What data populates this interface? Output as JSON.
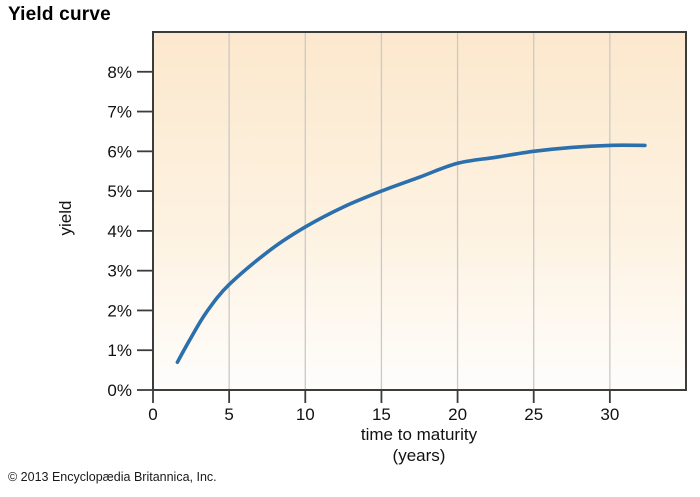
{
  "title": "Yield curve",
  "copyright": "© 2013 Encyclopædia Britannica, Inc.",
  "chart_data": {
    "type": "line",
    "title": "Yield curve",
    "xlabel": "time to maturity (years)",
    "xlabel_lines": [
      "time to maturity",
      "(years)"
    ],
    "ylabel": "yield",
    "xlim": [
      0,
      35
    ],
    "ylim": [
      0,
      9
    ],
    "x_ticks": [
      0,
      5,
      10,
      15,
      20,
      25,
      30
    ],
    "y_ticks": [
      0,
      1,
      2,
      3,
      4,
      5,
      6,
      7,
      8
    ],
    "y_tick_suffix": "%",
    "grid": "vertical-only",
    "legend": "none",
    "series": [
      {
        "name": "yield",
        "color": "#2c6fad",
        "points": [
          [
            1.6,
            0.7
          ],
          [
            2.4,
            1.25
          ],
          [
            3.5,
            1.95
          ],
          [
            5,
            2.65
          ],
          [
            7.8,
            3.55
          ],
          [
            10,
            4.1
          ],
          [
            12.5,
            4.6
          ],
          [
            15,
            5.0
          ],
          [
            17.5,
            5.35
          ],
          [
            20,
            5.7
          ],
          [
            22.5,
            5.85
          ],
          [
            25,
            6.0
          ],
          [
            27.5,
            6.1
          ],
          [
            30,
            6.15
          ],
          [
            32.3,
            6.15
          ]
        ]
      }
    ],
    "colors": {
      "plot_bg_top": "#fce8cd",
      "plot_bg_mid": "#fdf2e1",
      "plot_bg_bottom": "#fefdfb",
      "gridline": "#c9c9c9",
      "axis": "#3c3c3c",
      "curve": "#2c6fad",
      "text": "#111111"
    }
  }
}
